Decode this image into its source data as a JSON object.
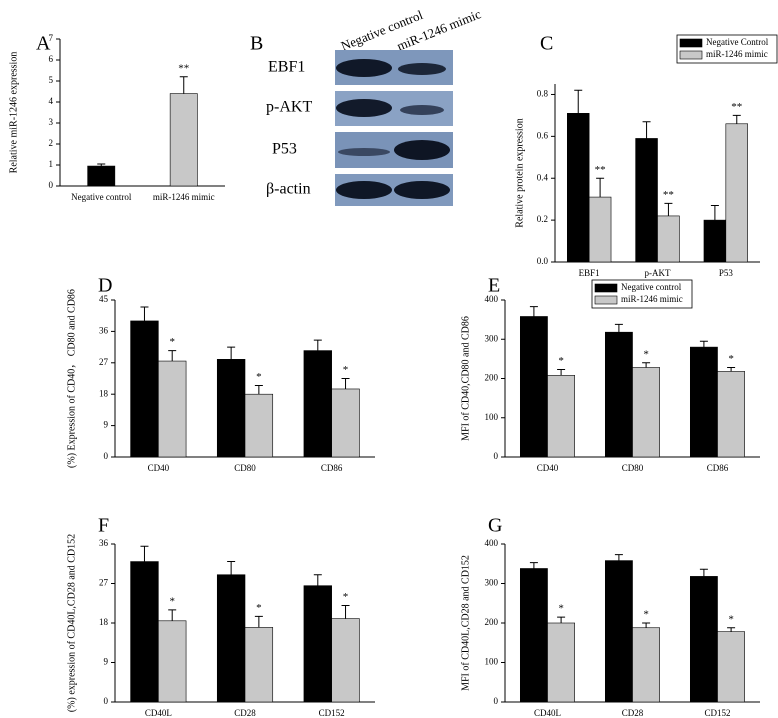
{
  "chart_data": [
    {
      "type": "bar",
      "panel": "A",
      "ylabel": "Relative miR-1246 expression",
      "categories": [
        "Negative control",
        "miR-1246 mimic"
      ],
      "values": [
        0.95,
        4.4
      ],
      "errors": [
        0.1,
        0.8
      ],
      "colors": [
        "#000000",
        "#c8c8c8"
      ],
      "ylim": [
        0,
        7
      ],
      "yticks": [
        0,
        1,
        2,
        3,
        4,
        5,
        6,
        7
      ],
      "annotations": [
        {
          "text": "**",
          "category": 1
        }
      ]
    },
    {
      "type": "grouped_bar",
      "panel": "C",
      "ylabel": "Relative protein expression",
      "categories": [
        "EBF1",
        "p-AKT",
        "P53"
      ],
      "series": [
        {
          "name": "Negative Control",
          "color": "#000000",
          "values": [
            0.71,
            0.59,
            0.2
          ],
          "errors": [
            0.11,
            0.08,
            0.07
          ]
        },
        {
          "name": "miR-1246 mimic",
          "color": "#c8c8c8",
          "values": [
            0.31,
            0.22,
            0.66
          ],
          "errors": [
            0.09,
            0.06,
            0.04
          ]
        }
      ],
      "ylim": [
        0,
        0.85
      ],
      "yticks": [
        {
          "value": 0,
          "label": "0.0"
        },
        0.2,
        0.4,
        0.6,
        0.8
      ],
      "legend": "top-right",
      "annotations": [
        {
          "text": "**",
          "series": 1,
          "category": 0
        },
        {
          "text": "**",
          "series": 1,
          "category": 1
        },
        {
          "text": "**",
          "series": 1,
          "category": 2
        }
      ]
    },
    {
      "type": "grouped_bar",
      "panel": "D",
      "ylabel": "(%) Expression of CD40， CD80 and CD86",
      "categories": [
        "CD40",
        "CD80",
        "CD86"
      ],
      "series": [
        {
          "name": "Negative control",
          "color": "#000000",
          "values": [
            39,
            28,
            30.5
          ],
          "errors": [
            4,
            3.5,
            3
          ]
        },
        {
          "name": "miR-1246 mimic",
          "color": "#c8c8c8",
          "values": [
            27.5,
            18,
            19.5
          ],
          "errors": [
            3,
            2.5,
            3
          ]
        }
      ],
      "ylim": [
        0,
        45
      ],
      "yticks": [
        0,
        9,
        18,
        27,
        36,
        45
      ],
      "annotations": [
        {
          "text": "*",
          "series": 1,
          "category": 0
        },
        {
          "text": "*",
          "series": 1,
          "category": 1
        },
        {
          "text": "*",
          "series": 1,
          "category": 2
        }
      ]
    },
    {
      "type": "grouped_bar",
      "panel": "E",
      "ylabel": "MFI of CD40,CD80 and CD86",
      "categories": [
        "CD40",
        "CD80",
        "CD86"
      ],
      "series": [
        {
          "name": "Negative control",
          "color": "#000000",
          "values": [
            358,
            318,
            280
          ],
          "errors": [
            25,
            20,
            15
          ]
        },
        {
          "name": "miR-1246 mimic",
          "color": "#c8c8c8",
          "values": [
            208,
            228,
            218
          ],
          "errors": [
            15,
            12,
            10
          ]
        }
      ],
      "ylim": [
        0,
        400
      ],
      "yticks": [
        0,
        100,
        200,
        300,
        400
      ],
      "legend": "top-right",
      "annotations": [
        {
          "text": "*",
          "series": 1,
          "category": 0
        },
        {
          "text": "*",
          "series": 1,
          "category": 1
        },
        {
          "text": "*",
          "series": 1,
          "category": 2
        }
      ]
    },
    {
      "type": "grouped_bar",
      "panel": "F",
      "ylabel": "(%) expression of CD40L,CD28 and CD152",
      "categories": [
        "CD40L",
        "CD28",
        "CD152"
      ],
      "series": [
        {
          "name": "Negative control",
          "color": "#000000",
          "values": [
            32,
            29,
            26.5
          ],
          "errors": [
            3.5,
            3,
            2.5
          ]
        },
        {
          "name": "miR-1246 mimic",
          "color": "#c8c8c8",
          "values": [
            18.5,
            17,
            19
          ],
          "errors": [
            2.5,
            2.5,
            3
          ]
        }
      ],
      "ylim": [
        0,
        36
      ],
      "yticks": [
        0,
        9,
        18,
        27,
        36
      ],
      "annotations": [
        {
          "text": "*",
          "series": 1,
          "category": 0
        },
        {
          "text": "*",
          "series": 1,
          "category": 1
        },
        {
          "text": "*",
          "series": 1,
          "category": 2
        }
      ]
    },
    {
      "type": "grouped_bar",
      "panel": "G",
      "ylabel": "MFI of CD40L,CD28 and CD152",
      "categories": [
        "CD40L",
        "CD28",
        "CD152"
      ],
      "series": [
        {
          "name": "Negative control",
          "color": "#000000",
          "values": [
            338,
            358,
            318
          ],
          "errors": [
            15,
            15,
            18
          ]
        },
        {
          "name": "miR-1246 mimic",
          "color": "#c8c8c8",
          "values": [
            200,
            188,
            178
          ],
          "errors": [
            15,
            12,
            10
          ]
        }
      ],
      "ylim": [
        0,
        400
      ],
      "yticks": [
        0,
        100,
        200,
        300,
        400
      ],
      "annotations": [
        {
          "text": "*",
          "series": 1,
          "category": 0
        },
        {
          "text": "*",
          "series": 1,
          "category": 1
        },
        {
          "text": "*",
          "series": 1,
          "category": 2
        }
      ]
    }
  ],
  "blot": {
    "panel": "B",
    "columns": [
      "Negative control",
      "miR-1246 mimic"
    ],
    "rows": [
      "EBF1",
      "p-AKT",
      "P53",
      "β-actin"
    ]
  }
}
